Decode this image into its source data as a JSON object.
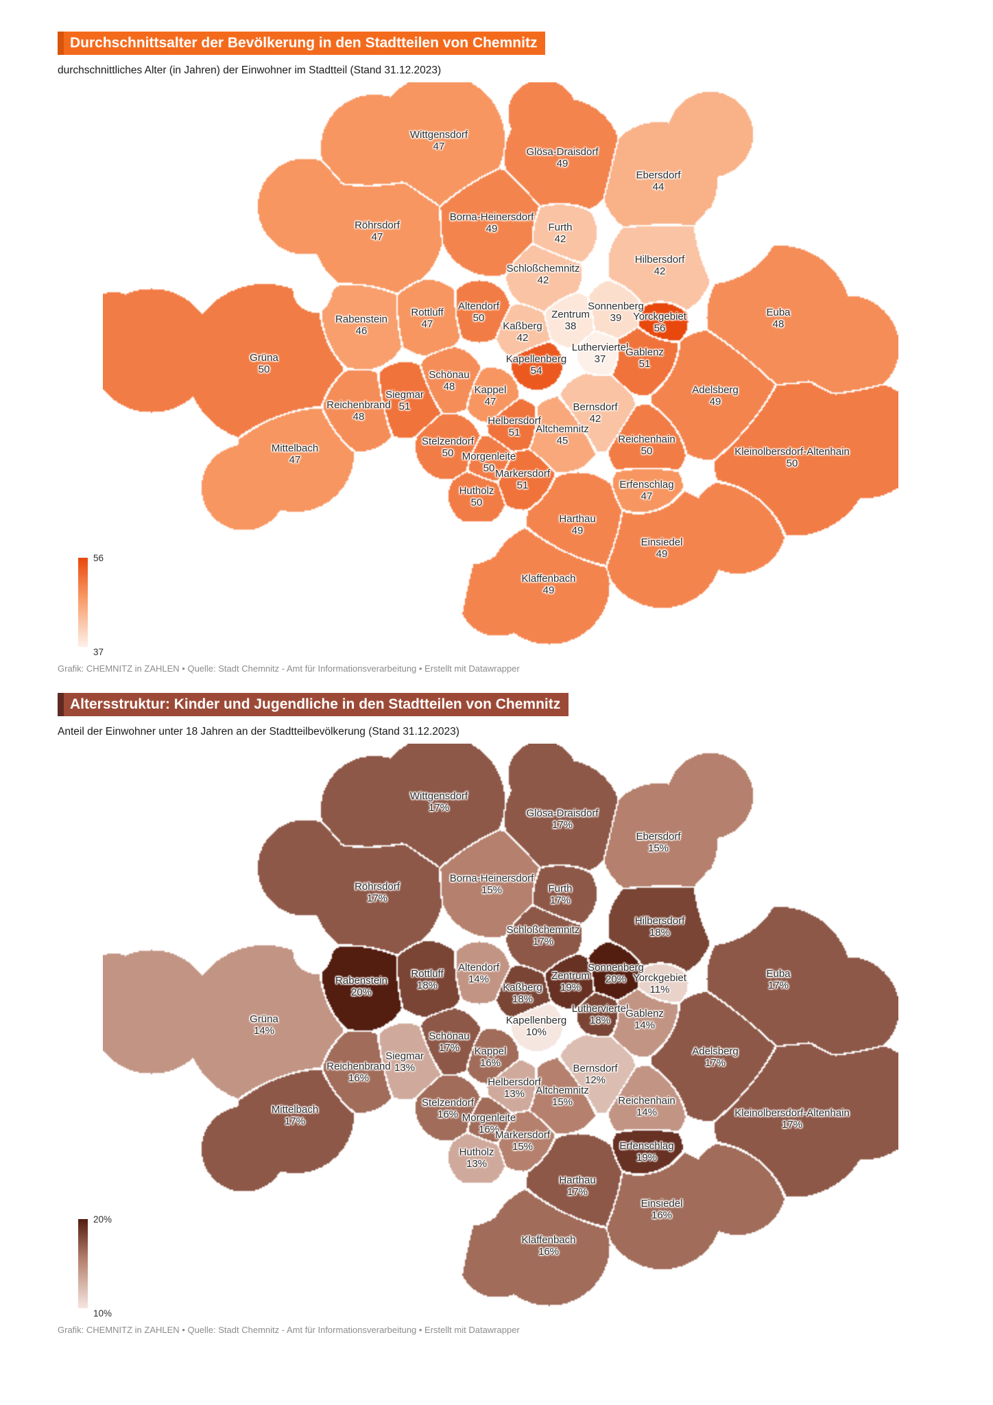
{
  "chart_data": [
    {
      "type": "choropleth",
      "title": "Durchschnittsalter der Bevölkerung in den Stadtteilen von Chemnitz",
      "subtitle": "durchschnittliches Alter (in Jahren) der Einwohner im Stadtteil (Stand 31.12.2023)",
      "footer": "Grafik: CHEMNITZ in ZAHLEN • Quelle: Stadt Chemnitz - Amt für Informationsverarbeitung • Erstellt mit Datawrapper",
      "legend": {
        "max_label": "56",
        "min_label": "37",
        "position": "bottom-left"
      },
      "range": [
        37,
        56
      ],
      "value_suffix": "",
      "palette": [
        "#fdf0e8",
        "#f89a66",
        "#e8480c"
      ],
      "title_bar_color": "#f46a1d",
      "title_accent_color": "#d85408",
      "districts": [
        {
          "name": "Wittgensdorf",
          "value": 47
        },
        {
          "name": "Glösa-Draisdorf",
          "value": 49
        },
        {
          "name": "Ebersdorf",
          "value": 44
        },
        {
          "name": "Röhrsdorf",
          "value": 47
        },
        {
          "name": "Borna-Heinersdorf",
          "value": 49
        },
        {
          "name": "Furth",
          "value": 42
        },
        {
          "name": "Hilbersdorf",
          "value": 42
        },
        {
          "name": "Schloßchemnitz",
          "value": 42
        },
        {
          "name": "Rabenstein",
          "value": 46
        },
        {
          "name": "Rottluff",
          "value": 47
        },
        {
          "name": "Altendorf",
          "value": 50
        },
        {
          "name": "Kaßberg",
          "value": 42
        },
        {
          "name": "Zentrum",
          "value": 38
        },
        {
          "name": "Sonnenberg",
          "value": 39
        },
        {
          "name": "Yorckgebiet",
          "value": 56
        },
        {
          "name": "Euba",
          "value": 48
        },
        {
          "name": "Lutherviertel",
          "value": 37
        },
        {
          "name": "Gablenz",
          "value": 51
        },
        {
          "name": "Kapellenberg",
          "value": 54
        },
        {
          "name": "Grüna",
          "value": 50
        },
        {
          "name": "Schönau",
          "value": 48
        },
        {
          "name": "Kappel",
          "value": 47
        },
        {
          "name": "Siegmar",
          "value": 51
        },
        {
          "name": "Reichenbrand",
          "value": 48
        },
        {
          "name": "Adelsberg",
          "value": 49
        },
        {
          "name": "Bernsdorf",
          "value": 42
        },
        {
          "name": "Helbersdorf",
          "value": 51
        },
        {
          "name": "Altchemnitz",
          "value": 45
        },
        {
          "name": "Mittelbach",
          "value": 47
        },
        {
          "name": "Stelzendorf",
          "value": 50
        },
        {
          "name": "Reichenhain",
          "value": 50
        },
        {
          "name": "Morgenleite",
          "value": 50
        },
        {
          "name": "Kleinolbersdorf-Altenhain",
          "value": 50
        },
        {
          "name": "Markersdorf",
          "value": 51
        },
        {
          "name": "Erfenschlag",
          "value": 47
        },
        {
          "name": "Hutholz",
          "value": 50
        },
        {
          "name": "Harthau",
          "value": 49
        },
        {
          "name": "Einsiedel",
          "value": 49
        },
        {
          "name": "Klaffenbach",
          "value": 49
        }
      ]
    },
    {
      "type": "choropleth",
      "title": "Altersstruktur: Kinder und Jugendliche in den Stadtteilen von Chemnitz",
      "subtitle": "Anteil der Einwohner unter 18 Jahren an der Stadtteilbevölkerung (Stand 31.12.2023)",
      "footer": "Grafik: CHEMNITZ in ZAHLEN • Quelle: Stadt Chemnitz - Amt für Informationsverarbeitung • Erstellt mit Datawrapper",
      "legend": {
        "max_label": "20%",
        "min_label": "10%",
        "position": "bottom-left"
      },
      "range": [
        10,
        20
      ],
      "value_suffix": "%",
      "palette": [
        "#f5e6e0",
        "#b5806d",
        "#531d10"
      ],
      "title_bar_color": "#9c4a37",
      "title_accent_color": "#5f2a22",
      "districts": [
        {
          "name": "Wittgensdorf",
          "value": 17
        },
        {
          "name": "Glösa-Draisdorf",
          "value": 17
        },
        {
          "name": "Ebersdorf",
          "value": 15
        },
        {
          "name": "Röhrsdorf",
          "value": 17
        },
        {
          "name": "Borna-Heinersdorf",
          "value": 15
        },
        {
          "name": "Furth",
          "value": 17
        },
        {
          "name": "Hilbersdorf",
          "value": 18
        },
        {
          "name": "Schloßchemnitz",
          "value": 17
        },
        {
          "name": "Rabenstein",
          "value": 20
        },
        {
          "name": "Rottluff",
          "value": 18
        },
        {
          "name": "Altendorf",
          "value": 14
        },
        {
          "name": "Kaßberg",
          "value": 18
        },
        {
          "name": "Zentrum",
          "value": 19
        },
        {
          "name": "Sonnenberg",
          "value": 20
        },
        {
          "name": "Yorckgebiet",
          "value": 11
        },
        {
          "name": "Euba",
          "value": 17
        },
        {
          "name": "Lutherviertel",
          "value": 18
        },
        {
          "name": "Gablenz",
          "value": 14
        },
        {
          "name": "Kapellenberg",
          "value": 10
        },
        {
          "name": "Grüna",
          "value": 14
        },
        {
          "name": "Schönau",
          "value": 17
        },
        {
          "name": "Kappel",
          "value": 16
        },
        {
          "name": "Siegmar",
          "value": 13
        },
        {
          "name": "Reichenbrand",
          "value": 16
        },
        {
          "name": "Adelsberg",
          "value": 17
        },
        {
          "name": "Bernsdorf",
          "value": 12
        },
        {
          "name": "Helbersdorf",
          "value": 13
        },
        {
          "name": "Altchemnitz",
          "value": 15
        },
        {
          "name": "Mittelbach",
          "value": 17
        },
        {
          "name": "Stelzendorf",
          "value": 16
        },
        {
          "name": "Reichenhain",
          "value": 14
        },
        {
          "name": "Morgenleite",
          "value": 16
        },
        {
          "name": "Kleinolbersdorf-Altenhain",
          "value": 17
        },
        {
          "name": "Markersdorf",
          "value": 15
        },
        {
          "name": "Erfenschlag",
          "value": 19
        },
        {
          "name": "Hutholz",
          "value": 13
        },
        {
          "name": "Harthau",
          "value": 17
        },
        {
          "name": "Einsiedel",
          "value": 16
        },
        {
          "name": "Klaffenbach",
          "value": 16
        }
      ]
    }
  ]
}
